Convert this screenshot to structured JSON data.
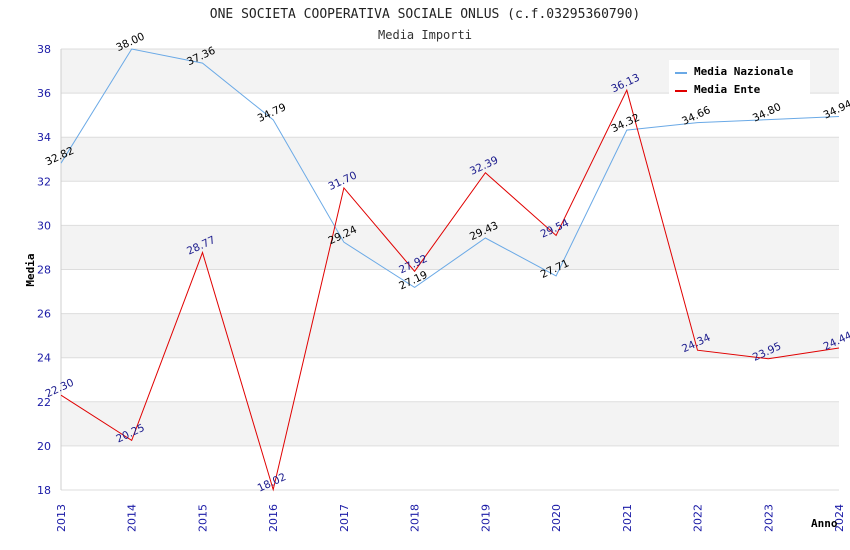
{
  "chart_data": {
    "type": "line",
    "title": "ONE SOCIETA COOPERATIVA SOCIALE ONLUS (c.f.03295360790)",
    "subtitle": "Media Importi",
    "xlabel": "Anno",
    "ylabel": "Media",
    "x": [
      "2013",
      "2014",
      "2015",
      "2016",
      "2017",
      "2018",
      "2019",
      "2020",
      "2021",
      "2022",
      "2023",
      "2024"
    ],
    "ylim": [
      18,
      38
    ],
    "yticks": [
      18,
      20,
      22,
      24,
      26,
      28,
      30,
      32,
      34,
      36,
      38
    ],
    "grid": true,
    "legend_position": "top-right",
    "series": [
      {
        "name": "Media Nazionale",
        "color": "#6aa9e6",
        "values": [
          32.82,
          38.0,
          37.36,
          34.79,
          29.24,
          27.19,
          29.43,
          27.71,
          34.32,
          34.66,
          34.8,
          34.94
        ],
        "labels": [
          "32.82",
          "38.00",
          "37.36",
          "34.79",
          "29.24",
          "27.19",
          "29.43",
          "27.71",
          "34.32",
          "34.66",
          "34.80",
          "34.94"
        ]
      },
      {
        "name": "Media Ente",
        "color": "#e00000",
        "values": [
          22.3,
          20.25,
          28.77,
          18.02,
          31.7,
          27.92,
          32.39,
          29.54,
          36.13,
          24.34,
          23.95,
          24.44
        ],
        "labels": [
          "22.30",
          "20.25",
          "28.77",
          "18.02",
          "31.70",
          "27.92",
          "32.39",
          "29.54",
          "36.13",
          "24.34",
          "23.95",
          "24.44"
        ]
      }
    ]
  }
}
